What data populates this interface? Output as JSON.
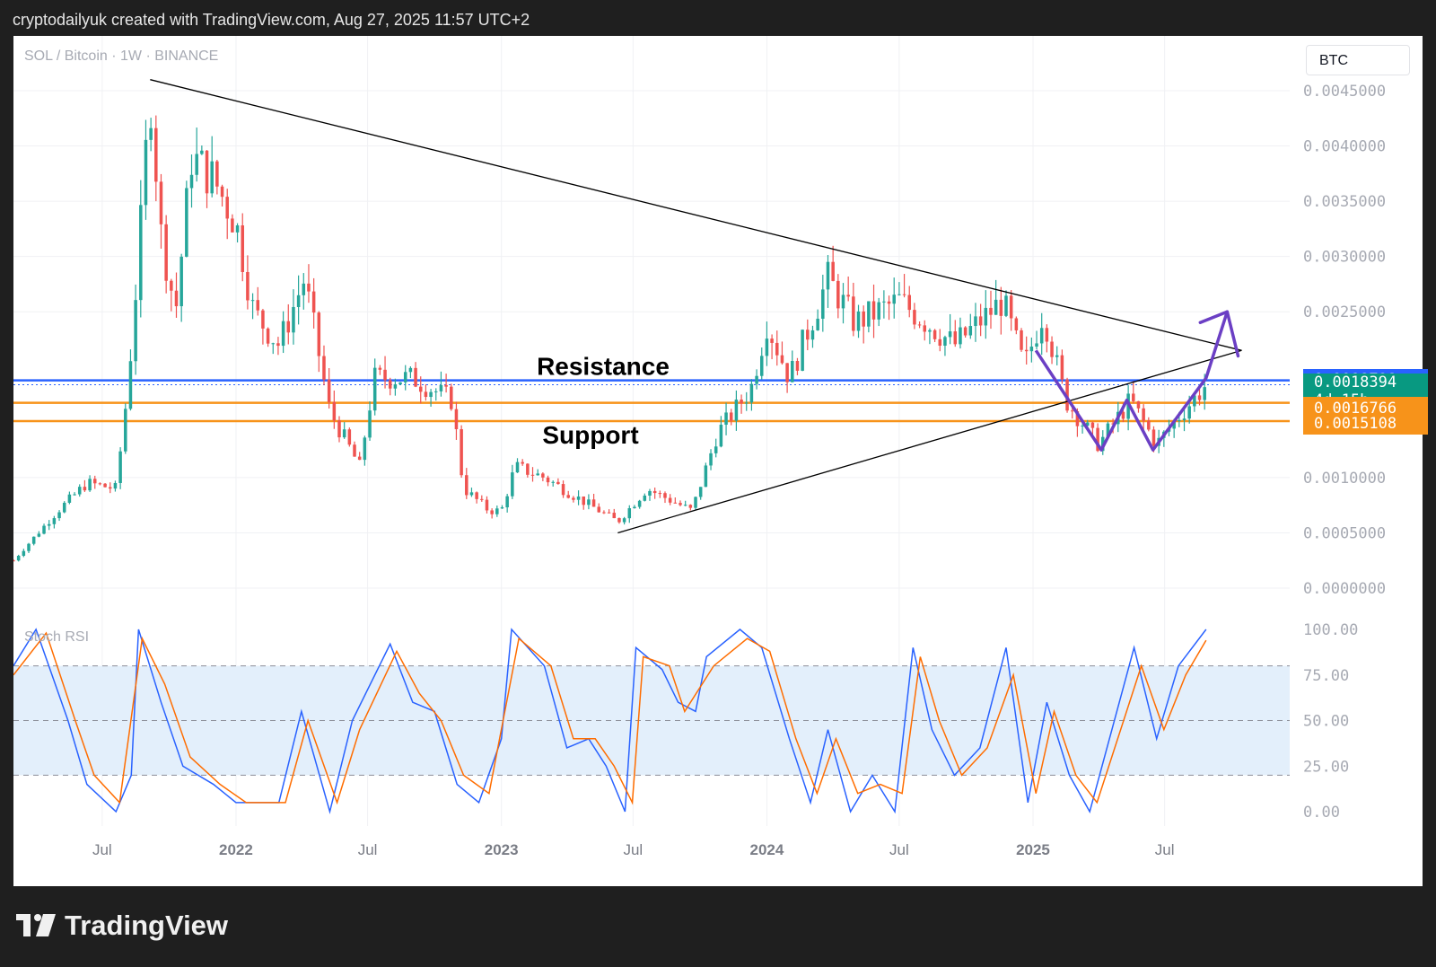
{
  "header": {
    "text": "cryptodailyuk created with TradingView.com, Aug 27, 2025 11:57 UTC+2"
  },
  "symbol_label": "SOL / Bitcoin · 1W · BINANCE",
  "currency_button": "BTC",
  "indicator_label": "Stoch RSI",
  "brand": "TradingView",
  "colors": {
    "up": "#26a69a",
    "down": "#ef5350",
    "resistance": "#2962ff",
    "support": "#f7931a",
    "stoch_k": "#2962ff",
    "stoch_d": "#ff6d00",
    "projection": "#6b3fc4",
    "band": "#e3effb"
  },
  "chart_data": [
    {
      "type": "candlestick",
      "title": "SOL / Bitcoin · 1W · BINANCE",
      "y_ticks": [
        0.0045,
        0.004,
        0.0035,
        0.003,
        0.0025,
        0.001,
        0.0005,
        0
      ],
      "y_tick_labels": [
        "0.0045000",
        "0.0040000",
        "0.0035000",
        "0.0030000",
        "0.0025000",
        "0.0010000",
        "0.0005000",
        "0.0000000"
      ],
      "ylim": [
        0,
        0.0045
      ],
      "x_tick_labels": [
        "Jul",
        "2022",
        "Jul",
        "2023",
        "Jul",
        "2024",
        "Jul",
        "2025",
        "Jul"
      ],
      "x_tick_dates": [
        "2021-07-01",
        "2022-01-01",
        "2022-07-01",
        "2023-01-01",
        "2023-07-01",
        "2024-01-01",
        "2024-07-01",
        "2025-01-01",
        "2025-07-01"
      ],
      "x_range": [
        "2021-03-01",
        "2025-12-20"
      ],
      "close_path": [
        [
          "2021-03-01",
          0.00025
        ],
        [
          "2021-05-01",
          0.0007
        ],
        [
          "2021-06-10",
          0.00095
        ],
        [
          "2021-07-20",
          0.0009
        ],
        [
          "2021-08-05",
          0.0018
        ],
        [
          "2021-08-20",
          0.003
        ],
        [
          "2021-09-05",
          0.0045
        ],
        [
          "2021-09-20",
          0.0032
        ],
        [
          "2021-10-10",
          0.0025
        ],
        [
          "2021-11-01",
          0.0039
        ],
        [
          "2021-12-01",
          0.0037
        ],
        [
          "2022-01-01",
          0.0033
        ],
        [
          "2022-01-25",
          0.0025
        ],
        [
          "2022-03-01",
          0.0022
        ],
        [
          "2022-04-05",
          0.0028
        ],
        [
          "2022-05-10",
          0.0016
        ],
        [
          "2022-06-20",
          0.0011
        ],
        [
          "2022-07-10",
          0.0019
        ],
        [
          "2022-09-01",
          0.0019
        ],
        [
          "2022-10-25",
          0.0017
        ],
        [
          "2022-11-10",
          0.0009
        ],
        [
          "2022-12-15",
          0.0007
        ],
        [
          "2023-01-01",
          0.0007
        ],
        [
          "2023-01-20",
          0.0011
        ],
        [
          "2023-03-01",
          0.001
        ],
        [
          "2023-04-20",
          0.0008
        ],
        [
          "2023-06-10",
          0.0006
        ],
        [
          "2023-07-20",
          0.0009
        ],
        [
          "2023-09-20",
          0.0007
        ],
        [
          "2023-10-25",
          0.0014
        ],
        [
          "2023-12-10",
          0.0018
        ],
        [
          "2024-01-01",
          0.0024
        ],
        [
          "2024-02-01",
          0.0019
        ],
        [
          "2024-03-25",
          0.0028
        ],
        [
          "2024-05-01",
          0.0024
        ],
        [
          "2024-07-01",
          0.0026
        ],
        [
          "2024-09-15",
          0.0022
        ],
        [
          "2024-11-20",
          0.0026
        ],
        [
          "2024-12-20",
          0.002
        ],
        [
          "2025-01-15",
          0.0025
        ],
        [
          "2025-02-15",
          0.0017
        ],
        [
          "2025-04-01",
          0.0013
        ],
        [
          "2025-05-15",
          0.0017
        ],
        [
          "2025-06-20",
          0.0013
        ],
        [
          "2025-07-20",
          0.00155
        ],
        [
          "2025-08-27",
          0.00184
        ]
      ],
      "annotations": {
        "resistance": {
          "label": "Resistance",
          "value": 0.0018798
        },
        "support": {
          "label": "Support",
          "upper": 0.0016766,
          "lower": 0.0015108
        },
        "current": 0.0018394,
        "triangle_upper": [
          [
            "2021-09-05",
            0.0046
          ],
          [
            "2025-10-15",
            0.00215
          ]
        ],
        "triangle_lower": [
          [
            "2023-06-10",
            0.0005
          ],
          [
            "2025-10-15",
            0.00215
          ]
        ],
        "projection_path": [
          [
            "2025-01-05",
            0.00215
          ],
          [
            "2025-04-05",
            0.00125
          ],
          [
            "2025-05-10",
            0.0017
          ],
          [
            "2025-06-15",
            0.00125
          ],
          [
            "2025-08-27",
            0.0019
          ],
          [
            "2025-09-25",
            0.0025
          ],
          [
            "2025-10-10",
            0.0021
          ]
        ]
      },
      "price_labels": [
        {
          "label": "0.0018798",
          "color": "#2962ff"
        },
        {
          "label": "0.0018394",
          "sublabel": "4d 15h",
          "color": "#089981"
        },
        {
          "label": "0.0016766",
          "color": "#f7931a"
        },
        {
          "label": "0.0015108",
          "color": "#f7931a"
        }
      ]
    },
    {
      "type": "line",
      "title": "Stoch RSI",
      "ylim": [
        0,
        100
      ],
      "y_tick_labels": [
        "100.00",
        "75.00",
        "50.00",
        "25.00",
        "0.00"
      ],
      "bands": [
        20,
        50,
        80
      ],
      "series": [
        {
          "points": [
            [
              "2021-03-01",
              80
            ],
            [
              "2021-04-01",
              100
            ],
            [
              "2021-05-15",
              50
            ],
            [
              "2021-06-10",
              15
            ],
            [
              "2021-07-20",
              0
            ],
            [
              "2021-08-10",
              20
            ],
            [
              "2021-08-20",
              100
            ],
            [
              "2021-09-20",
              60
            ],
            [
              "2021-10-20",
              25
            ],
            [
              "2021-12-01",
              15
            ],
            [
              "2022-01-01",
              5
            ],
            [
              "2022-02-01",
              5
            ],
            [
              "2022-03-01",
              5
            ],
            [
              "2022-04-01",
              55
            ],
            [
              "2022-05-10",
              0
            ],
            [
              "2022-06-10",
              50
            ],
            [
              "2022-08-01",
              92
            ],
            [
              "2022-09-01",
              60
            ],
            [
              "2022-10-01",
              55
            ],
            [
              "2022-11-01",
              15
            ],
            [
              "2022-12-01",
              5
            ],
            [
              "2023-01-01",
              40
            ],
            [
              "2023-01-15",
              100
            ],
            [
              "2023-03-01",
              80
            ],
            [
              "2023-04-01",
              35
            ],
            [
              "2023-05-01",
              40
            ],
            [
              "2023-05-25",
              25
            ],
            [
              "2023-06-20",
              0
            ],
            [
              "2023-07-05",
              90
            ],
            [
              "2023-08-10",
              78
            ],
            [
              "2023-09-01",
              60
            ],
            [
              "2023-09-25",
              55
            ],
            [
              "2023-10-10",
              85
            ],
            [
              "2023-11-25",
              100
            ],
            [
              "2023-12-25",
              90
            ],
            [
              "2024-02-01",
              40
            ],
            [
              "2024-03-01",
              5
            ],
            [
              "2024-03-25",
              45
            ],
            [
              "2024-04-25",
              0
            ],
            [
              "2024-05-25",
              20
            ],
            [
              "2024-06-25",
              0
            ],
            [
              "2024-07-20",
              90
            ],
            [
              "2024-08-15",
              45
            ],
            [
              "2024-09-15",
              20
            ],
            [
              "2024-10-20",
              35
            ],
            [
              "2024-11-25",
              90
            ],
            [
              "2024-12-25",
              5
            ],
            [
              "2025-01-20",
              60
            ],
            [
              "2025-02-20",
              20
            ],
            [
              "2025-03-20",
              0
            ],
            [
              "2025-05-20",
              90
            ],
            [
              "2025-06-20",
              40
            ],
            [
              "2025-07-20",
              80
            ],
            [
              "2025-08-27",
              100
            ]
          ]
        },
        {
          "points": [
            [
              "2021-03-01",
              75
            ],
            [
              "2021-04-15",
              98
            ],
            [
              "2021-05-25",
              50
            ],
            [
              "2021-06-20",
              20
            ],
            [
              "2021-07-25",
              5
            ],
            [
              "2021-08-25",
              95
            ],
            [
              "2021-09-25",
              70
            ],
            [
              "2021-10-30",
              30
            ],
            [
              "2021-12-10",
              15
            ],
            [
              "2022-01-15",
              5
            ],
            [
              "2022-03-10",
              5
            ],
            [
              "2022-04-10",
              50
            ],
            [
              "2022-05-20",
              5
            ],
            [
              "2022-06-20",
              45
            ],
            [
              "2022-08-10",
              88
            ],
            [
              "2022-09-10",
              65
            ],
            [
              "2022-10-10",
              50
            ],
            [
              "2022-11-10",
              20
            ],
            [
              "2022-12-15",
              10
            ],
            [
              "2023-01-25",
              95
            ],
            [
              "2023-03-10",
              80
            ],
            [
              "2023-04-10",
              40
            ],
            [
              "2023-05-10",
              40
            ],
            [
              "2023-06-05",
              25
            ],
            [
              "2023-06-30",
              5
            ],
            [
              "2023-07-15",
              85
            ],
            [
              "2023-08-20",
              80
            ],
            [
              "2023-09-10",
              55
            ],
            [
              "2023-10-20",
              80
            ],
            [
              "2023-12-05",
              95
            ],
            [
              "2024-01-05",
              88
            ],
            [
              "2024-02-10",
              40
            ],
            [
              "2024-03-10",
              10
            ],
            [
              "2024-04-05",
              40
            ],
            [
              "2024-05-05",
              10
            ],
            [
              "2024-06-05",
              15
            ],
            [
              "2024-07-05",
              10
            ],
            [
              "2024-07-30",
              85
            ],
            [
              "2024-08-25",
              50
            ],
            [
              "2024-09-25",
              20
            ],
            [
              "2024-10-30",
              35
            ],
            [
              "2024-12-05",
              75
            ],
            [
              "2025-01-05",
              10
            ],
            [
              "2025-01-30",
              55
            ],
            [
              "2025-03-01",
              20
            ],
            [
              "2025-03-30",
              5
            ],
            [
              "2025-05-30",
              80
            ],
            [
              "2025-06-30",
              45
            ],
            [
              "2025-07-30",
              75
            ],
            [
              "2025-08-27",
              94
            ]
          ]
        }
      ]
    }
  ]
}
